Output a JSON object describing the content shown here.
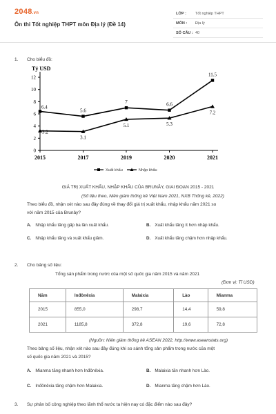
{
  "header": {
    "brand": "2048",
    "brand_suffix": ".vn",
    "title": "Ôn thi Tốt nghiệp THPT môn Địa lý (Đề 14)",
    "meta": [
      {
        "key": "LỚP :",
        "value": "Tốt nghiệp THPT"
      },
      {
        "key": "MÔN :",
        "value": "Địa lý"
      },
      {
        "key": "SỐ CÂU :",
        "value": "40"
      }
    ]
  },
  "q1": {
    "number": "1.",
    "prompt": "Cho biểu đồ:",
    "chart_caption": "GIÁ TRỊ XUẤT KHẨU, NHẬP KHẨU CỦA BRUNÂY, GIAI ĐOẠN 2015 - 2021",
    "chart_source": "(Số liệu theo, Niên giám thống kê Việt Nam 2021, NXB Thống kê, 2022)",
    "question_line1": "Theo biểu đồ, nhận xét nào sau đây đúng về thay đổi giá trị xuất khẩu, nhập khẩu năm 2021 so",
    "question_line2": "với năm 2015 của Brunây?",
    "options": [
      {
        "letter": "A.",
        "text": "Nhập khẩu tăng gấp ba lần xuất khẩu."
      },
      {
        "letter": "B.",
        "text": "Xuất khẩu tăng ít hơn nhập khẩu."
      },
      {
        "letter": "C.",
        "text": "Nhập khẩu tăng và xuất khẩu giảm."
      },
      {
        "letter": "D.",
        "text": "Xuất khẩu tăng chậm hơn nhập khẩu."
      }
    ]
  },
  "chart_data": {
    "type": "line",
    "ylabel": "Tỷ USD",
    "ylim": [
      0,
      12
    ],
    "yticks": [
      0,
      2,
      4,
      6,
      8,
      10,
      12
    ],
    "x": [
      "2015",
      "2017",
      "2019",
      "2020",
      "2021"
    ],
    "series": [
      {
        "name": "Xuất khẩu",
        "values": [
          6.4,
          5.6,
          7.0,
          6.6,
          11.5
        ],
        "labels": [
          "6.4",
          "5.6",
          "7",
          "6.6",
          "11.5"
        ],
        "marker": "square"
      },
      {
        "name": "Nhập khẩu",
        "values": [
          3.2,
          3.1,
          5.1,
          5.3,
          7.2
        ],
        "labels": [
          "3.2",
          "3.1",
          "5.1",
          "5.3",
          "7.2"
        ],
        "marker": "triangle"
      }
    ],
    "legend_position": "bottom"
  },
  "q2": {
    "number": "2.",
    "prompt": "Cho bảng số liệu:",
    "table_title": "Tổng sản phẩm trong nước của một số quốc gia năm 2015 và năm 2021",
    "unit": "(Đơn vị: Tỉ USD)",
    "table": {
      "headers": [
        "Năm",
        "Inđônêxia",
        "Malaixia",
        "Lào",
        "Mianma"
      ],
      "rows": [
        [
          "2015",
          "855,0",
          "298,7",
          "14,4",
          "59,8"
        ],
        [
          "2021",
          "1185,8",
          "372,8",
          "19,6",
          "72,8"
        ]
      ]
    },
    "source": "(Nguồn: Niên giám thống kê ASEAN 2022, http://www.aseanstats.org)",
    "question_line1": "Theo bảng số liệu, nhận xét nào sau đây đúng khi so sánh tổng sản phẩm trong nước của một",
    "question_line2": "số quốc gia năm  2021 và 2015?",
    "options": [
      {
        "letter": "A.",
        "text": "Mianma tăng nhanh hơn Inđônêxia."
      },
      {
        "letter": "B.",
        "text": "Malaixia tăn nhanh hơn Lào."
      },
      {
        "letter": "C.",
        "text": "Inđônêxia tăng chậm hơn Malaixia."
      },
      {
        "letter": "D.",
        "text": "Mianma tăng chậm hơn Lào."
      }
    ]
  },
  "q3": {
    "number": "3.",
    "prompt": "Sự phân bố công nghiệp theo lãnh thổ nước ta hiện nay có đặc điểm nào sau đây?"
  }
}
